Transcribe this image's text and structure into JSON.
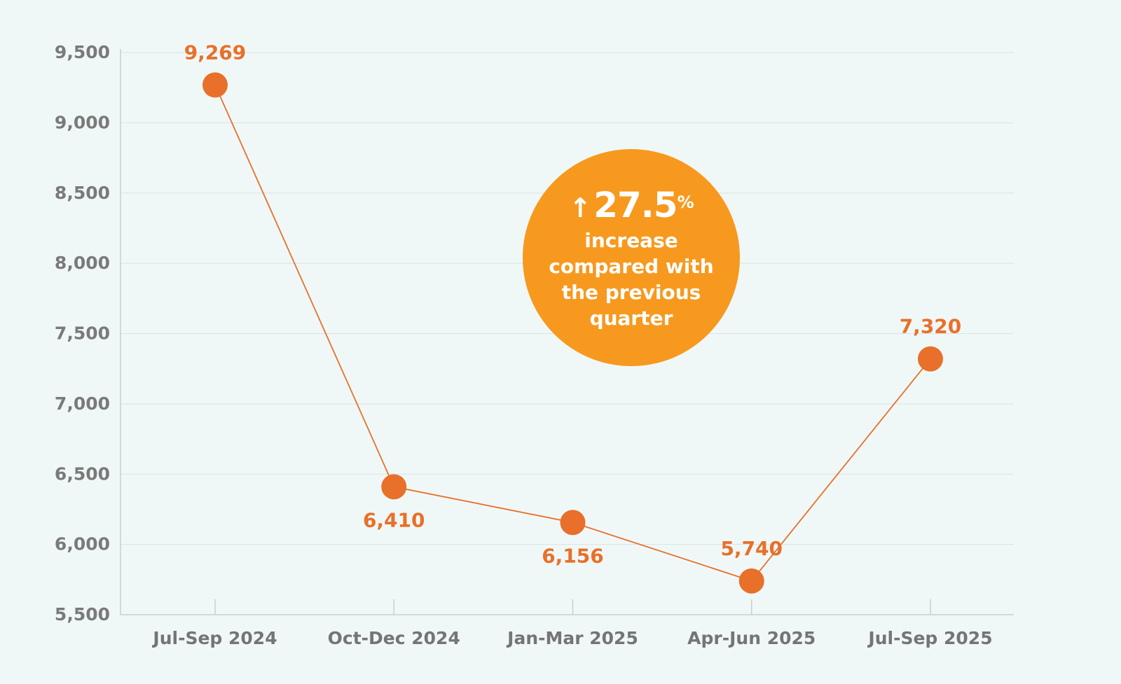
{
  "chart_data": {
    "type": "line",
    "title": "",
    "xlabel": "",
    "ylabel": "",
    "categories": [
      "Jul-Sep 2024",
      "Oct-Dec 2024",
      "Jan-Mar 2025",
      "Apr-Jun 2025",
      "Jul-Sep 2025"
    ],
    "values": [
      9269,
      6410,
      6156,
      5740,
      7320
    ],
    "value_labels": [
      "9,269",
      "6,410",
      "6,156",
      "5,740",
      "7,320"
    ],
    "label_placement": [
      "above",
      "below",
      "below",
      "above",
      "above"
    ],
    "ylim": [
      5500,
      9500
    ],
    "yticks": [
      5500,
      6000,
      6500,
      7000,
      7500,
      8000,
      8500,
      9000,
      9500
    ],
    "ytick_labels": [
      "5,500",
      "6,000",
      "6,500",
      "7,000",
      "7,500",
      "8,000",
      "8,500",
      "9,000",
      "9,500"
    ],
    "grid": true,
    "colors": {
      "line": "#e8702a",
      "point": "#e8702a",
      "grid": "#d8e3e2",
      "axis": "#c8cfce",
      "badge": "#f7991e",
      "background": "#f0f8f7"
    },
    "annotation": {
      "arrow_icon": "arrow-up-icon",
      "arrow": "↑",
      "value": "27.5",
      "unit": "%",
      "text": "increase compared with the previous quarter"
    }
  }
}
